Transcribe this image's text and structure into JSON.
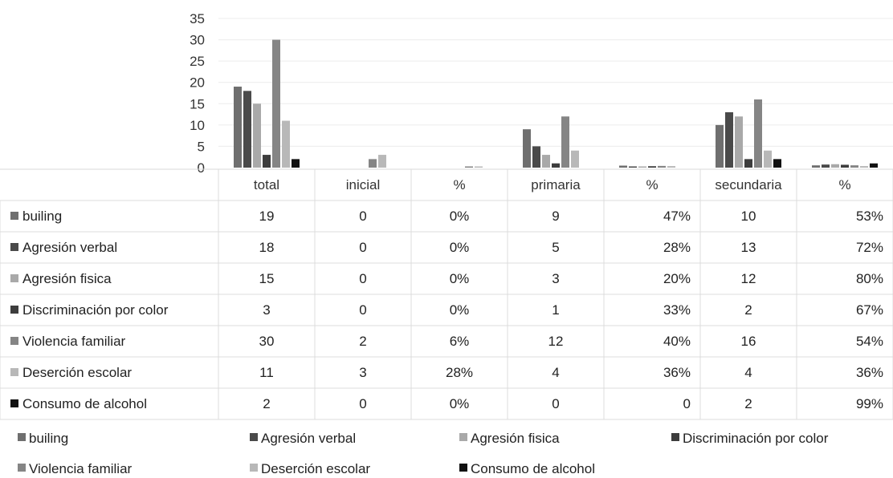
{
  "chart_data": {
    "type": "bar",
    "categories": [
      "total",
      "inicial",
      "%",
      "primaria",
      "%",
      "secundaria",
      "%"
    ],
    "ylim": [
      0,
      35
    ],
    "yticks": [
      0,
      5,
      10,
      15,
      20,
      25,
      30,
      35
    ],
    "grid": true,
    "legend": "bottom",
    "series": [
      {
        "name": "builing",
        "color": "#6f6f6f",
        "values": [
          19,
          0,
          0,
          9,
          0.47,
          10,
          0.53
        ],
        "labels": [
          "19",
          "0",
          "0%",
          "9",
          "47%",
          "10",
          "53%"
        ]
      },
      {
        "name": "Agresión verbal",
        "color": "#4a4a4a",
        "values": [
          18,
          0,
          0,
          5,
          0.28,
          13,
          0.72
        ],
        "labels": [
          "18",
          "0",
          "0%",
          "5",
          "28%",
          "13",
          "72%"
        ]
      },
      {
        "name": "Agresión fisica",
        "color": "#a9a9a9",
        "values": [
          15,
          0,
          0,
          3,
          0.2,
          12,
          0.8
        ],
        "labels": [
          "15",
          "0",
          "0%",
          "3",
          "20%",
          "12",
          "80%"
        ]
      },
      {
        "name": "Discriminación por color",
        "color": "#3d3d3d",
        "values": [
          3,
          0,
          0,
          1,
          0.33,
          2,
          0.67
        ],
        "labels": [
          "3",
          "0",
          "0%",
          "1",
          "33%",
          "2",
          "67%"
        ]
      },
      {
        "name": "Violencia familiar",
        "color": "#858585",
        "values": [
          30,
          2,
          0.06,
          12,
          0.4,
          16,
          0.54
        ],
        "labels": [
          "30",
          "2",
          "6%",
          "12",
          "40%",
          "16",
          "54%"
        ]
      },
      {
        "name": "Deserción escolar",
        "color": "#b8b8b8",
        "values": [
          11,
          3,
          0.28,
          4,
          0.36,
          4,
          0.36
        ],
        "labels": [
          "11",
          "3",
          "28%",
          "4",
          "36%",
          "4",
          "36%"
        ]
      },
      {
        "name": "Consumo de alcohol",
        "color": "#111111",
        "values": [
          2,
          0,
          0,
          0,
          0,
          2,
          0.99
        ],
        "labels": [
          "2",
          "0",
          "0%",
          "0",
          "0",
          "2",
          "99%"
        ]
      }
    ]
  }
}
